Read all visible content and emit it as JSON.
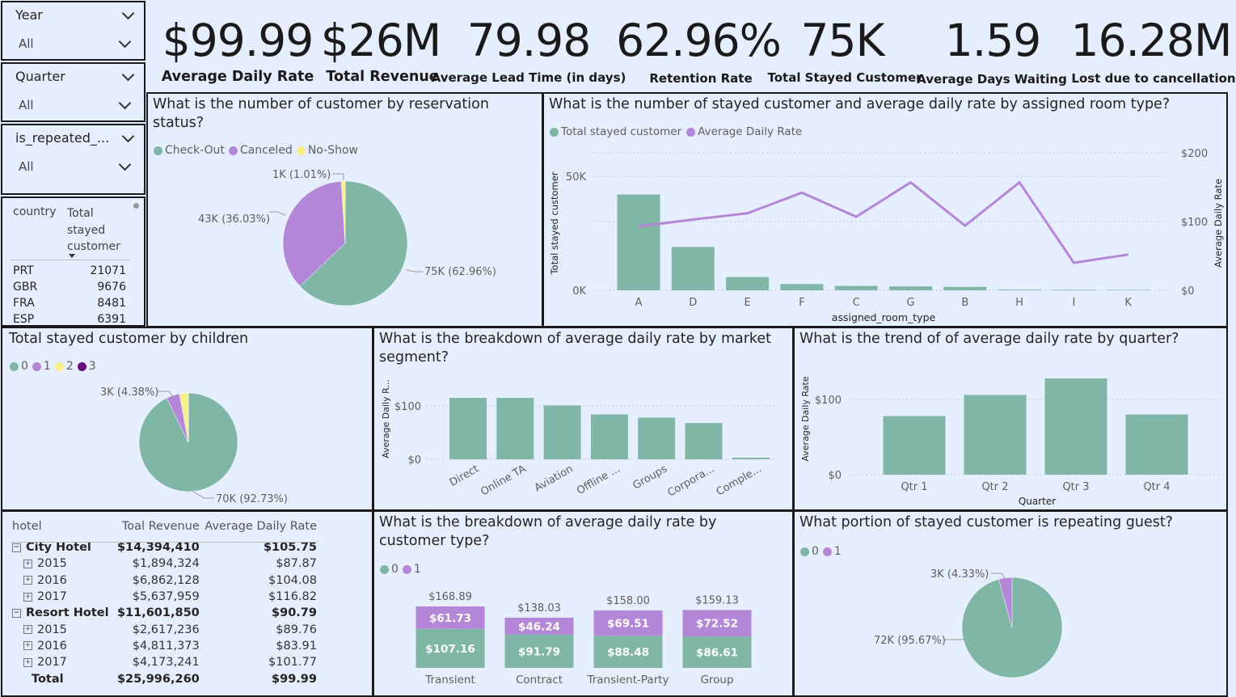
{
  "slicers": [
    {
      "label": "Year",
      "value": "All"
    },
    {
      "label": "Quarter",
      "value": "All"
    },
    {
      "label": "is_repeated_...",
      "value": "All"
    }
  ],
  "kpis": [
    {
      "value": "$99.99",
      "label": "Average Daily Rate"
    },
    {
      "value": "$26M",
      "label": "Total Revenue"
    },
    {
      "value": "79.98",
      "label": "Average Lead Time (in days)"
    },
    {
      "value": "62.96%",
      "label": "Retention Rate"
    },
    {
      "value": "75K",
      "label": "Total Stayed Customer"
    },
    {
      "value": "1.59",
      "label": "Average Days Waiting"
    },
    {
      "value": "16.28M",
      "label": "Lost due to cancellation"
    }
  ],
  "country_table": {
    "headers": [
      "country",
      "Total stayed customer"
    ],
    "header2_lines": [
      "Total",
      "stayed",
      "customer"
    ],
    "rows": [
      {
        "country": "PRT",
        "value": "21071"
      },
      {
        "country": "GBR",
        "value": "9676"
      },
      {
        "country": "FRA",
        "value": "8481"
      },
      {
        "country": "ESP",
        "value": "6391"
      }
    ]
  },
  "reservation_chart": {
    "title": "What is the number of customer by reservation status?",
    "legend": [
      {
        "name": "Check-Out",
        "color": "#7fb6a6"
      },
      {
        "name": "Canceled",
        "color": "#b486d8"
      },
      {
        "name": "No-Show",
        "color": "#f5f08a"
      }
    ],
    "labels": [
      "75K (62.96%)",
      "43K (36.03%)",
      "1K (1.01%)"
    ]
  },
  "room_chart": {
    "title": "What is the number of stayed customer and average daily rate by assigned room type?",
    "legend": [
      {
        "name": "Total stayed customer",
        "color": "#7fb6a6"
      },
      {
        "name": "Average Daily Rate",
        "color": "#b486d8"
      }
    ],
    "xlabel": "assigned_room_type",
    "ylabel_left": "Total stayed customer",
    "ylabel_right": "Average Daily Rate",
    "left_ticks": [
      "50K",
      "0K"
    ],
    "right_ticks": [
      "$200",
      "$100",
      "$0"
    ]
  },
  "children_chart": {
    "title": "Total stayed customer by children",
    "legend": [
      {
        "name": "0",
        "color": "#7fb6a6"
      },
      {
        "name": "1",
        "color": "#b486d8"
      },
      {
        "name": "2",
        "color": "#f5f08a"
      },
      {
        "name": "3",
        "color": "#6a0f7a"
      }
    ],
    "labels": [
      "3K (4.38%)",
      "70K (92.73%)"
    ]
  },
  "market_chart": {
    "title": "What is the breakdown of average daily rate by market segment?",
    "ylabel": "Average Daily R...",
    "ticks": [
      "$100",
      "$0"
    ]
  },
  "quarter_chart": {
    "title": "What is the trend of of average daily rate by quarter?",
    "ylabel": "Average Daily Rate",
    "xlabel": "Quarter",
    "ticks": [
      "$100",
      "$0"
    ]
  },
  "hotel_table": {
    "headers": [
      "hotel",
      "Toal Revenue",
      "Average Daily Rate"
    ],
    "rows": [
      {
        "name": "City Hotel",
        "revenue": "$14,394,410",
        "adr": "$105.75",
        "level": 0,
        "icon": "minus"
      },
      {
        "name": "2015",
        "revenue": "$1,894,324",
        "adr": "$87.87",
        "level": 1,
        "icon": "plus"
      },
      {
        "name": "2016",
        "revenue": "$6,862,128",
        "adr": "$104.08",
        "level": 1,
        "icon": "plus"
      },
      {
        "name": "2017",
        "revenue": "$5,637,959",
        "adr": "$116.82",
        "level": 1,
        "icon": "plus"
      },
      {
        "name": "Resort Hotel",
        "revenue": "$11,601,850",
        "adr": "$90.79",
        "level": 0,
        "icon": "minus"
      },
      {
        "name": "2015",
        "revenue": "$2,617,236",
        "adr": "$89.76",
        "level": 1,
        "icon": "plus"
      },
      {
        "name": "2016",
        "revenue": "$4,811,373",
        "adr": "$83.91",
        "level": 1,
        "icon": "plus"
      },
      {
        "name": "2017",
        "revenue": "$4,173,241",
        "adr": "$101.77",
        "level": 1,
        "icon": "plus"
      },
      {
        "name": "Total",
        "revenue": "$25,996,260",
        "adr": "$99.99",
        "level": 2,
        "icon": "none"
      }
    ]
  },
  "customer_type_chart": {
    "title": "What is the breakdown of average daily rate by customer type?",
    "legend": [
      {
        "name": "0",
        "color": "#7fb6a6"
      },
      {
        "name": "1",
        "color": "#b486d8"
      }
    ]
  },
  "repeat_chart": {
    "title": "What portion of stayed customer is repeating guest?",
    "legend": [
      {
        "name": "0",
        "color": "#7fb6a6"
      },
      {
        "name": "1",
        "color": "#b486d8"
      }
    ],
    "labels": [
      "3K (4.33%)",
      "72K (95.67%)"
    ]
  },
  "chart_data": [
    {
      "type": "pie",
      "id": "reservation",
      "categories": [
        "Check-Out",
        "Canceled",
        "No-Show"
      ],
      "values": [
        62.96,
        36.03,
        1.01
      ],
      "colors": [
        "#7fb6a6",
        "#b486d8",
        "#f5f08a"
      ]
    },
    {
      "type": "bar",
      "id": "room",
      "categories": [
        "A",
        "D",
        "E",
        "F",
        "C",
        "G",
        "B",
        "H",
        "I",
        "K"
      ],
      "series": [
        {
          "name": "Total stayed customer",
          "values": [
            42000,
            19000,
            5800,
            2700,
            1900,
            1700,
            1500,
            300,
            250,
            200
          ],
          "color": "#7fb6a6"
        },
        {
          "name": "Average Daily Rate",
          "values": [
            93,
            103,
            112,
            142,
            107,
            157,
            94,
            157,
            40,
            52
          ],
          "color": "#b486d8"
        }
      ],
      "ylim_left": [
        0,
        60000
      ],
      "ylim_right": [
        0,
        200
      ]
    },
    {
      "type": "pie",
      "id": "children",
      "categories": [
        "0",
        "1",
        "2",
        "3"
      ],
      "values": [
        92.73,
        4.38,
        2.87,
        0.02
      ],
      "colors": [
        "#7fb6a6",
        "#b486d8",
        "#f5f08a",
        "#6a0f7a"
      ]
    },
    {
      "type": "bar",
      "id": "market",
      "categories": [
        "Direct",
        "Online TA",
        "Aviation",
        "Offline ...",
        "Groups",
        "Corpora...",
        "Comple..."
      ],
      "values": [
        115,
        115,
        101,
        84,
        78,
        68,
        3
      ],
      "ylim": [
        0,
        130
      ]
    },
    {
      "type": "bar",
      "id": "quarter",
      "categories": [
        "Qtr 1",
        "Qtr 2",
        "Qtr 3",
        "Qtr 4"
      ],
      "values": [
        78,
        106,
        128,
        80
      ],
      "ylim": [
        0,
        135
      ]
    },
    {
      "type": "bar",
      "id": "custtype",
      "stacked": true,
      "categories": [
        "Transient",
        "Contract",
        "Transient-Party",
        "Group"
      ],
      "totals": [
        "$168.89",
        "$138.03",
        "$158.00",
        "$159.13"
      ],
      "series": [
        {
          "name": "0",
          "values": [
            107.16,
            91.79,
            88.48,
            86.61
          ],
          "labels": [
            "$107.16",
            "$91.79",
            "$88.48",
            "$86.61"
          ],
          "color": "#7fb6a6"
        },
        {
          "name": "1",
          "values": [
            61.73,
            46.24,
            69.51,
            72.52
          ],
          "labels": [
            "$61.73",
            "$46.24",
            "$69.51",
            "$72.52"
          ],
          "color": "#b486d8"
        }
      ]
    },
    {
      "type": "pie",
      "id": "repeat",
      "categories": [
        "0",
        "1"
      ],
      "values": [
        95.67,
        4.33
      ],
      "colors": [
        "#7fb6a6",
        "#b486d8"
      ]
    }
  ]
}
